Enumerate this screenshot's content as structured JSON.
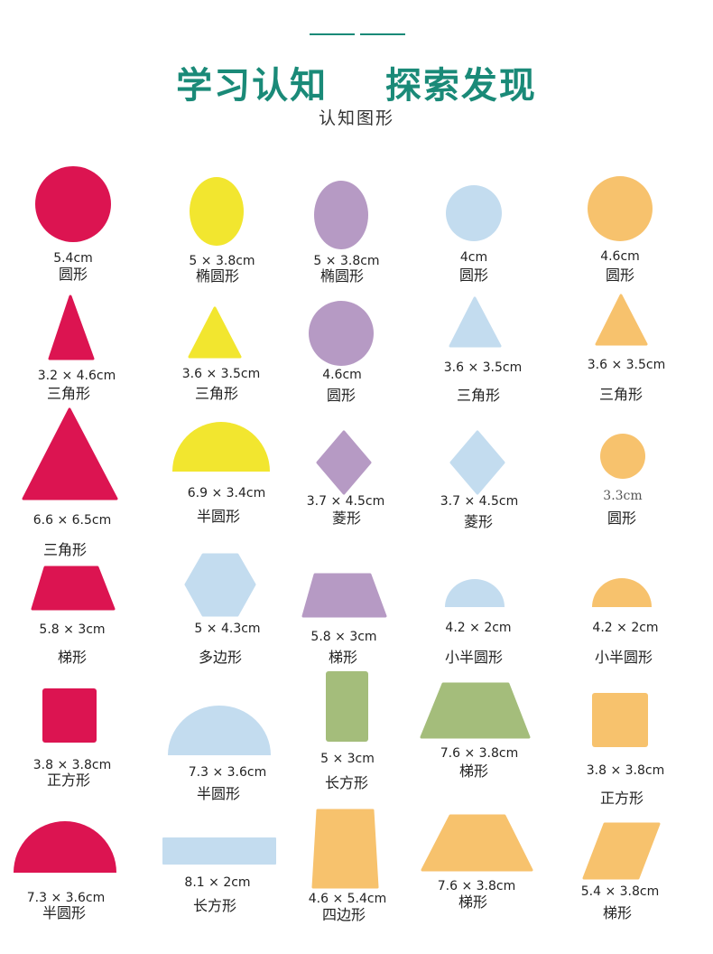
{
  "header": {
    "title": "学习认知    探索发现",
    "subtitle": "认知图形"
  },
  "colors": {
    "accent": "#1a8a78",
    "red": "#dc1451",
    "yellow": "#f2e62f",
    "purple": "#b69ac4",
    "light_blue": "#c3dcef",
    "orange": "#f7c26d",
    "green": "#a4bd7b"
  },
  "items": [
    {
      "dim": "5.4cm",
      "name": "圆形",
      "shape": "circle",
      "color": "red"
    },
    {
      "dim": "5 × 3.8cm",
      "name": "椭圆形",
      "shape": "ellipse",
      "color": "yellow"
    },
    {
      "dim": "5 × 3.8cm",
      "name": "椭圆形",
      "shape": "ellipse",
      "color": "purple"
    },
    {
      "dim": "4cm",
      "name": "圆形",
      "shape": "circle",
      "color": "light_blue"
    },
    {
      "dim": "4.6cm",
      "name": "圆形",
      "shape": "circle",
      "color": "orange"
    },
    {
      "dim": "3.2 × 4.6cm",
      "name": "三角形",
      "shape": "triangle",
      "color": "red"
    },
    {
      "dim": "3.6 × 3.5cm",
      "name": "三角形",
      "shape": "triangle",
      "color": "yellow"
    },
    {
      "dim": "4.6cm",
      "name": "圆形",
      "shape": "circle",
      "color": "purple"
    },
    {
      "dim": "3.6 × 3.5cm",
      "name": "三角形",
      "shape": "triangle",
      "color": "light_blue"
    },
    {
      "dim": "3.6 × 3.5cm",
      "name": "三角形",
      "shape": "triangle",
      "color": "orange"
    },
    {
      "dim": "6.6 × 6.5cm",
      "name": "三角形",
      "shape": "triangle",
      "color": "red"
    },
    {
      "dim": "6.9 × 3.4cm",
      "name": "半圆形",
      "shape": "semicircle",
      "color": "yellow"
    },
    {
      "dim": "3.7 × 4.5cm",
      "name": "菱形",
      "shape": "rhombus",
      "color": "purple"
    },
    {
      "dim": "3.7 × 4.5cm",
      "name": "菱形",
      "shape": "rhombus",
      "color": "light_blue"
    },
    {
      "dim": "3.3cm",
      "name": "圆形",
      "shape": "circle",
      "color": "orange"
    },
    {
      "dim": "5.8 × 3cm",
      "name": "梯形",
      "shape": "trapezoid",
      "color": "red"
    },
    {
      "dim": "5 × 4.3cm",
      "name": "多边形",
      "shape": "hexagon",
      "color": "light_blue"
    },
    {
      "dim": "5.8 × 3cm",
      "name": "梯形",
      "shape": "trapezoid",
      "color": "purple"
    },
    {
      "dim": "4.2 × 2cm",
      "name": "小半圆形",
      "shape": "semicircle",
      "color": "light_blue"
    },
    {
      "dim": "4.2 × 2cm",
      "name": "小半圆形",
      "shape": "semicircle",
      "color": "orange"
    },
    {
      "dim": "3.8 × 3.8cm",
      "name": "正方形",
      "shape": "square",
      "color": "red"
    },
    {
      "dim": "7.3 × 3.6cm",
      "name": "半圆形",
      "shape": "semicircle",
      "color": "light_blue"
    },
    {
      "dim": "5 × 3cm",
      "name": "长方形",
      "shape": "rectangle",
      "color": "green"
    },
    {
      "dim": "7.6 × 3.8cm",
      "name": "梯形",
      "shape": "trapezoid",
      "color": "green"
    },
    {
      "dim": "3.8 × 3.8cm",
      "name": "正方形",
      "shape": "square",
      "color": "orange"
    },
    {
      "dim": "7.3 × 3.6cm",
      "name": "半圆形",
      "shape": "semicircle",
      "color": "red"
    },
    {
      "dim": "8.1 × 2cm",
      "name": "长方形",
      "shape": "rectangle",
      "color": "light_blue"
    },
    {
      "dim": "4.6 × 5.4cm",
      "name": "四边形",
      "shape": "quadrilateral",
      "color": "orange"
    },
    {
      "dim": "7.6 × 3.8cm",
      "name": "梯形",
      "shape": "trapezoid",
      "color": "orange"
    },
    {
      "dim": "5.4 × 3.8cm",
      "name": "梯形",
      "shape": "parallelogram",
      "color": "orange"
    }
  ]
}
